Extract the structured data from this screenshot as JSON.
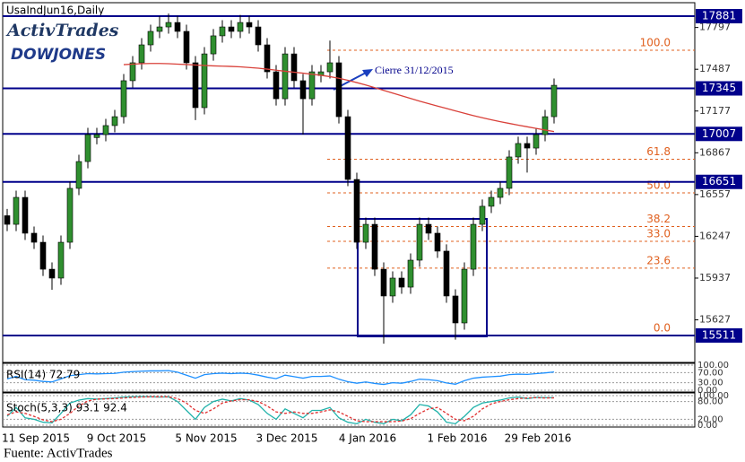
{
  "chart_data": {
    "type": "candlestick",
    "title": "UsaIndJun16,Daily",
    "logo": {
      "brand": "ActivTrades",
      "index": "DOWJONES"
    },
    "annotation": "Cierre 31/12/2015",
    "source": "Fuente: ActivTrades",
    "ylim": [
      15311,
      17981
    ],
    "yticks": [
      17797,
      17487,
      17177,
      16867,
      16557,
      16247,
      15937,
      15627
    ],
    "levels": [
      17881,
      17345,
      17007,
      16651,
      15511
    ],
    "level_color": "#00008b",
    "up_color": "#2f8f2f",
    "down_color": "#000000",
    "categories": [
      null,
      null,
      null,
      "11 Sep 2015",
      null,
      null,
      null,
      null,
      null,
      null,
      null,
      null,
      "9 Oct 2015",
      null,
      null,
      null,
      null,
      null,
      null,
      null,
      null,
      null,
      "5 Nov 2015",
      null,
      null,
      null,
      null,
      null,
      null,
      null,
      null,
      "3 Dec 2015",
      null,
      null,
      null,
      null,
      null,
      null,
      null,
      null,
      "4 Jan 2016",
      null,
      null,
      null,
      null,
      null,
      null,
      null,
      null,
      null,
      "1 Feb 2016",
      null,
      null,
      null,
      null,
      null,
      null,
      null,
      null,
      "29 Feb 2016",
      null,
      null
    ],
    "open": [
      16400,
      16336,
      16536,
      16270,
      16203,
      16003,
      15937,
      16203,
      16603,
      16802,
      16980,
      17002,
      17069,
      17135,
      17402,
      17535,
      17668,
      17768,
      17801,
      17834,
      17768,
      17535,
      17202,
      17601,
      17735,
      17801,
      17768,
      17834,
      17801,
      17668,
      17468,
      17268,
      17601,
      17402,
      17268,
      17440,
      17468,
      17535,
      17135,
      16669,
      16203,
      16336,
      16003,
      15804,
      15937,
      15870,
      16070,
      16336,
      16270,
      16137,
      15804,
      15604,
      16003,
      16336,
      16470,
      16536,
      16603,
      16836,
      16936,
      16902,
      17002,
      17135
    ],
    "high": [
      16450,
      16586,
      16586,
      16320,
      16253,
      16053,
      16253,
      16653,
      16852,
      17052,
      17052,
      17119,
      17185,
      17452,
      17585,
      17718,
      17818,
      17881,
      17900,
      17884,
      17818,
      17585,
      17651,
      17785,
      17851,
      17851,
      17890,
      17884,
      17851,
      17718,
      17518,
      17651,
      17651,
      17452,
      17518,
      17518,
      17700,
      17585,
      17185,
      16719,
      16386,
      16386,
      16053,
      15987,
      15987,
      16120,
      16386,
      16386,
      16320,
      16187,
      15854,
      16053,
      16386,
      16520,
      16586,
      16653,
      16886,
      16986,
      16986,
      17052,
      17185,
      17418
    ],
    "low": [
      16286,
      16286,
      16220,
      16153,
      15953,
      15850,
      15887,
      16153,
      16553,
      16752,
      16930,
      16952,
      17019,
      17085,
      17352,
      17485,
      17618,
      17718,
      17751,
      17718,
      17485,
      17110,
      17152,
      17551,
      17685,
      17718,
      17718,
      17751,
      17618,
      17418,
      17218,
      17218,
      17352,
      17002,
      17218,
      17390,
      17418,
      17085,
      16619,
      16153,
      16153,
      15953,
      15450,
      15754,
      15820,
      15820,
      16020,
      16220,
      16087,
      15754,
      15480,
      15554,
      15953,
      16286,
      16420,
      16486,
      16553,
      16786,
      16720,
      16852,
      16952,
      17085
    ],
    "close": [
      16336,
      16536,
      16270,
      16203,
      16003,
      15937,
      16203,
      16603,
      16802,
      17002,
      17002,
      17069,
      17135,
      17402,
      17535,
      17668,
      17768,
      17801,
      17834,
      17768,
      17535,
      17202,
      17601,
      17735,
      17801,
      17768,
      17834,
      17801,
      17668,
      17468,
      17268,
      17601,
      17402,
      17268,
      17468,
      17468,
      17535,
      17135,
      16669,
      16203,
      16336,
      16003,
      15804,
      15937,
      15870,
      16070,
      16336,
      16270,
      16137,
      15804,
      15604,
      16003,
      16336,
      16470,
      16536,
      16603,
      16836,
      16936,
      16902,
      17002,
      17135,
      17368
    ],
    "ma": {
      "color": "#d9413a",
      "values": [
        null,
        null,
        null,
        null,
        null,
        null,
        null,
        null,
        null,
        null,
        null,
        null,
        null,
        17521,
        17525,
        17528,
        17530,
        17530,
        17528,
        17525,
        17522,
        17518,
        17515,
        17512,
        17510,
        17508,
        17505,
        17500,
        17495,
        17488,
        17480,
        17472,
        17465,
        17458,
        17450,
        17442,
        17432,
        17420,
        17405,
        17388,
        17370,
        17350,
        17330,
        17310,
        17290,
        17270,
        17250,
        17232,
        17214,
        17196,
        17178,
        17160,
        17143,
        17127,
        17112,
        17098,
        17085,
        17072,
        17060,
        17048,
        17036,
        17025
      ]
    },
    "fib": {
      "low": 15511,
      "high": 17628,
      "color": "#e0601f",
      "levels": [
        {
          "value": 100,
          "label": "100.0"
        },
        {
          "value": 61.8,
          "label": "61.8"
        },
        {
          "value": 50,
          "label": "50.0"
        },
        {
          "value": 38.2,
          "label": "38.2"
        },
        {
          "value": 33,
          "label": "33.0"
        },
        {
          "value": 23.6,
          "label": "23.6"
        },
        {
          "value": 0,
          "label": "0.0"
        }
      ]
    },
    "rsi": {
      "title": "RSI(14) 72.79",
      "color": "#1e90ff",
      "ylim": [
        0,
        100
      ],
      "yticks": [
        {
          "value": 100,
          "label": "100.00"
        },
        {
          "value": 70,
          "label": "70.00"
        },
        {
          "value": 30,
          "label": "30.00"
        },
        {
          "value": 0,
          "label": "0.00"
        }
      ],
      "values": [
        45,
        55,
        42,
        40,
        35,
        33,
        45,
        58,
        62,
        66,
        65,
        66,
        67,
        72,
        74,
        76,
        77,
        77,
        78,
        72,
        60,
        48,
        62,
        66,
        68,
        66,
        68,
        66,
        60,
        52,
        46,
        60,
        54,
        48,
        55,
        55,
        57,
        44,
        34,
        28,
        33,
        27,
        23,
        30,
        28,
        35,
        44,
        42,
        38,
        29,
        24,
        38,
        48,
        52,
        54,
        56,
        62,
        64,
        63,
        66,
        69,
        72.79
      ]
    },
    "stoch": {
      "title": "Stoch(5,3,3) 93.1 92.4",
      "ylim": [
        0,
        100
      ],
      "yticks": [
        {
          "value": 100,
          "label": "100.00"
        },
        {
          "value": 80,
          "label": "80.00"
        },
        {
          "value": 20,
          "label": "20.00"
        },
        {
          "value": 0,
          "label": "0.00"
        }
      ],
      "series": [
        {
          "color": "#20b2aa",
          "values": [
            30,
            60,
            25,
            20,
            10,
            8,
            40,
            75,
            85,
            90,
            88,
            90,
            92,
            95,
            96,
            97,
            96,
            95,
            96,
            80,
            50,
            20,
            60,
            80,
            88,
            82,
            90,
            85,
            70,
            40,
            20,
            55,
            40,
            25,
            50,
            50,
            60,
            25,
            10,
            5,
            20,
            10,
            5,
            20,
            15,
            35,
            70,
            65,
            45,
            10,
            5,
            30,
            60,
            75,
            80,
            85,
            92,
            95,
            90,
            94,
            93,
            93.1
          ]
        },
        {
          "color": "#e03030",
          "values": [
            35,
            45,
            40,
            30,
            18,
            12,
            20,
            40,
            65,
            82,
            88,
            89,
            90,
            92,
            94,
            95,
            96,
            96,
            96,
            90,
            75,
            50,
            40,
            55,
            75,
            82,
            86,
            86,
            80,
            65,
            45,
            40,
            45,
            40,
            40,
            45,
            52,
            45,
            30,
            15,
            12,
            12,
            12,
            12,
            14,
            22,
            40,
            55,
            60,
            40,
            20,
            15,
            30,
            55,
            72,
            80,
            86,
            90,
            92,
            93,
            92,
            92.4
          ]
        }
      ]
    }
  }
}
